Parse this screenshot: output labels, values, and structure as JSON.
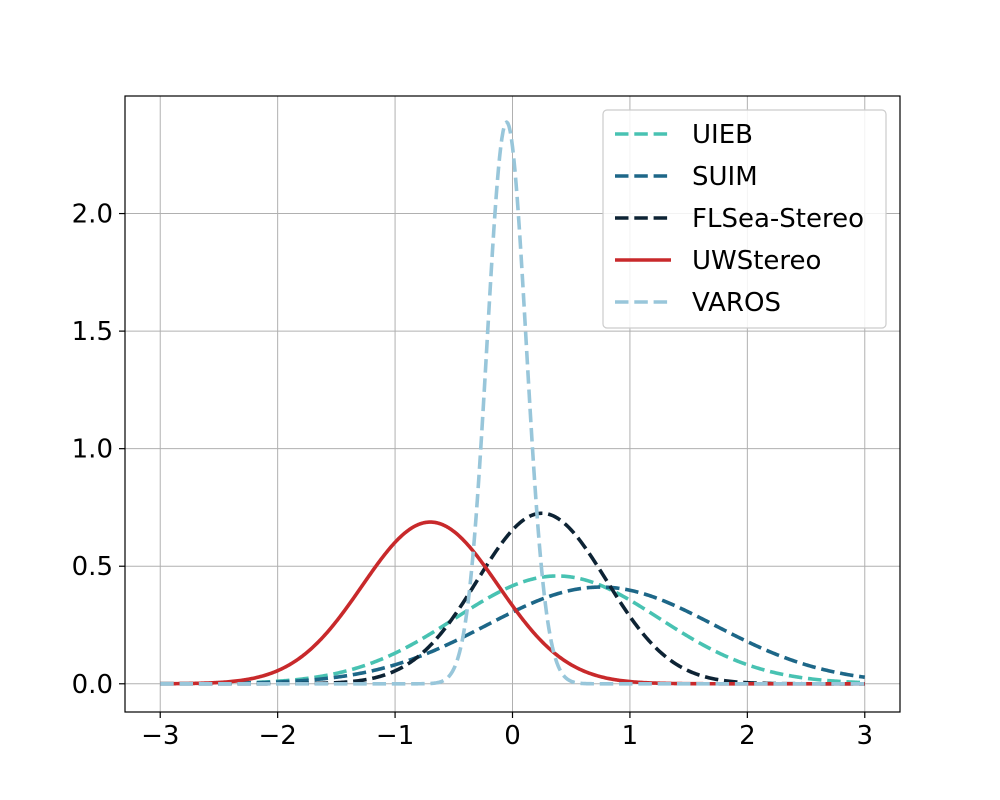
{
  "chart_data": {
    "type": "line",
    "title": "",
    "xlabel": "",
    "ylabel": "",
    "xlim": [
      -3.3,
      3.3
    ],
    "ylim": [
      -0.12,
      2.5
    ],
    "xticks": [
      -3,
      -2,
      -1,
      0,
      1,
      2,
      3
    ],
    "xtick_labels": [
      "−3",
      "−2",
      "−1",
      "0",
      "1",
      "2",
      "3"
    ],
    "yticks": [
      0.0,
      0.5,
      1.0,
      1.5,
      2.0
    ],
    "ytick_labels": [
      "0.0",
      "0.5",
      "1.0",
      "1.5",
      "2.0"
    ],
    "grid": true,
    "legend_position": "top-right",
    "x_range": [
      -3,
      3
    ],
    "series": [
      {
        "name": "UIEB",
        "distribution": "normal",
        "mean": 0.38,
        "std": 0.87,
        "color": "#48c2b2",
        "style": "dashed"
      },
      {
        "name": "SUIM",
        "distribution": "normal",
        "mean": 0.75,
        "std": 0.97,
        "color": "#1d6788",
        "style": "dashed"
      },
      {
        "name": "FLSea-Stereo",
        "distribution": "normal",
        "mean": 0.25,
        "std": 0.55,
        "color": "#0d2334",
        "style": "dashed"
      },
      {
        "name": "UWStereo",
        "distribution": "normal",
        "mean": -0.7,
        "std": 0.58,
        "color": "#c8292b",
        "style": "solid"
      },
      {
        "name": "VAROS",
        "distribution": "normal",
        "mean": -0.05,
        "std": 0.167,
        "color": "#98c6da",
        "style": "dashed"
      }
    ]
  }
}
